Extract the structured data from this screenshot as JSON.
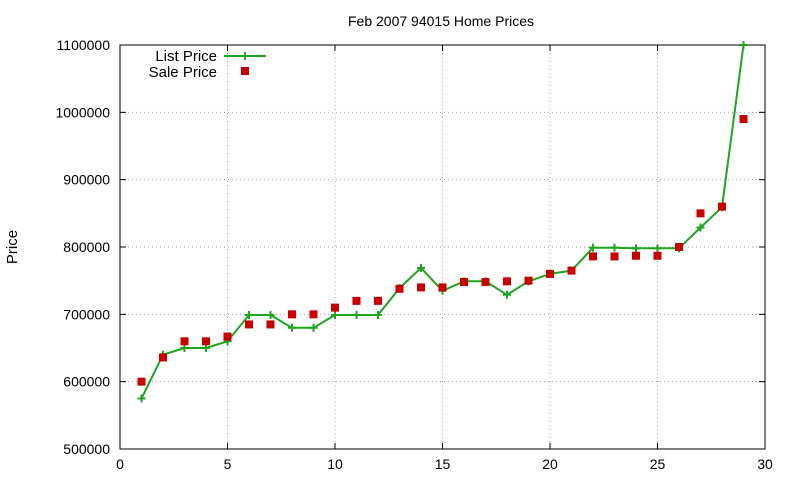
{
  "chart_data": {
    "type": "line",
    "title": "Feb 2007 94015 Home Prices",
    "xlabel": "",
    "ylabel": "Price",
    "xlim": [
      0,
      30
    ],
    "ylim": [
      500000,
      1100000
    ],
    "x_ticks": [
      0,
      5,
      10,
      15,
      20,
      25,
      30
    ],
    "y_ticks": [
      500000,
      600000,
      700000,
      800000,
      900000,
      1000000,
      1100000
    ],
    "grid": true,
    "legend_position": "top-left",
    "series": [
      {
        "name": "List Price",
        "style": "line-with-plus-markers",
        "color": "#1fa51f",
        "points": [
          [
            1,
            575000
          ],
          [
            2,
            640000
          ],
          [
            3,
            650000
          ],
          [
            4,
            650000
          ],
          [
            5,
            660000
          ],
          [
            6,
            699000
          ],
          [
            7,
            699000
          ],
          [
            8,
            680000
          ],
          [
            9,
            680000
          ],
          [
            10,
            699000
          ],
          [
            11,
            699000
          ],
          [
            12,
            699000
          ],
          [
            13,
            739000
          ],
          [
            14,
            769000
          ],
          [
            15,
            735000
          ],
          [
            16,
            749000
          ],
          [
            17,
            749000
          ],
          [
            18,
            729000
          ],
          [
            19,
            749000
          ],
          [
            20,
            760000
          ],
          [
            21,
            765000
          ],
          [
            22,
            799000
          ],
          [
            23,
            799000
          ],
          [
            24,
            798000
          ],
          [
            25,
            798000
          ],
          [
            26,
            798000
          ],
          [
            27,
            829000
          ],
          [
            28,
            859000
          ],
          [
            29,
            1100000
          ]
        ]
      },
      {
        "name": "Sale Price",
        "style": "square-markers",
        "color": "#c80000",
        "points": [
          [
            1,
            600000
          ],
          [
            2,
            636000
          ],
          [
            3,
            660000
          ],
          [
            4,
            660000
          ],
          [
            5,
            667000
          ],
          [
            6,
            685000
          ],
          [
            7,
            685000
          ],
          [
            8,
            700000
          ],
          [
            9,
            700000
          ],
          [
            10,
            710000
          ],
          [
            11,
            720000
          ],
          [
            12,
            720000
          ],
          [
            13,
            738000
          ],
          [
            14,
            740000
          ],
          [
            15,
            740000
          ],
          [
            16,
            748000
          ],
          [
            17,
            748000
          ],
          [
            18,
            749000
          ],
          [
            19,
            750000
          ],
          [
            20,
            760000
          ],
          [
            21,
            765000
          ],
          [
            22,
            786000
          ],
          [
            23,
            786000
          ],
          [
            24,
            787000
          ],
          [
            25,
            787000
          ],
          [
            26,
            800000
          ],
          [
            27,
            850000
          ],
          [
            28,
            860000
          ],
          [
            29,
            990000
          ]
        ]
      }
    ]
  }
}
